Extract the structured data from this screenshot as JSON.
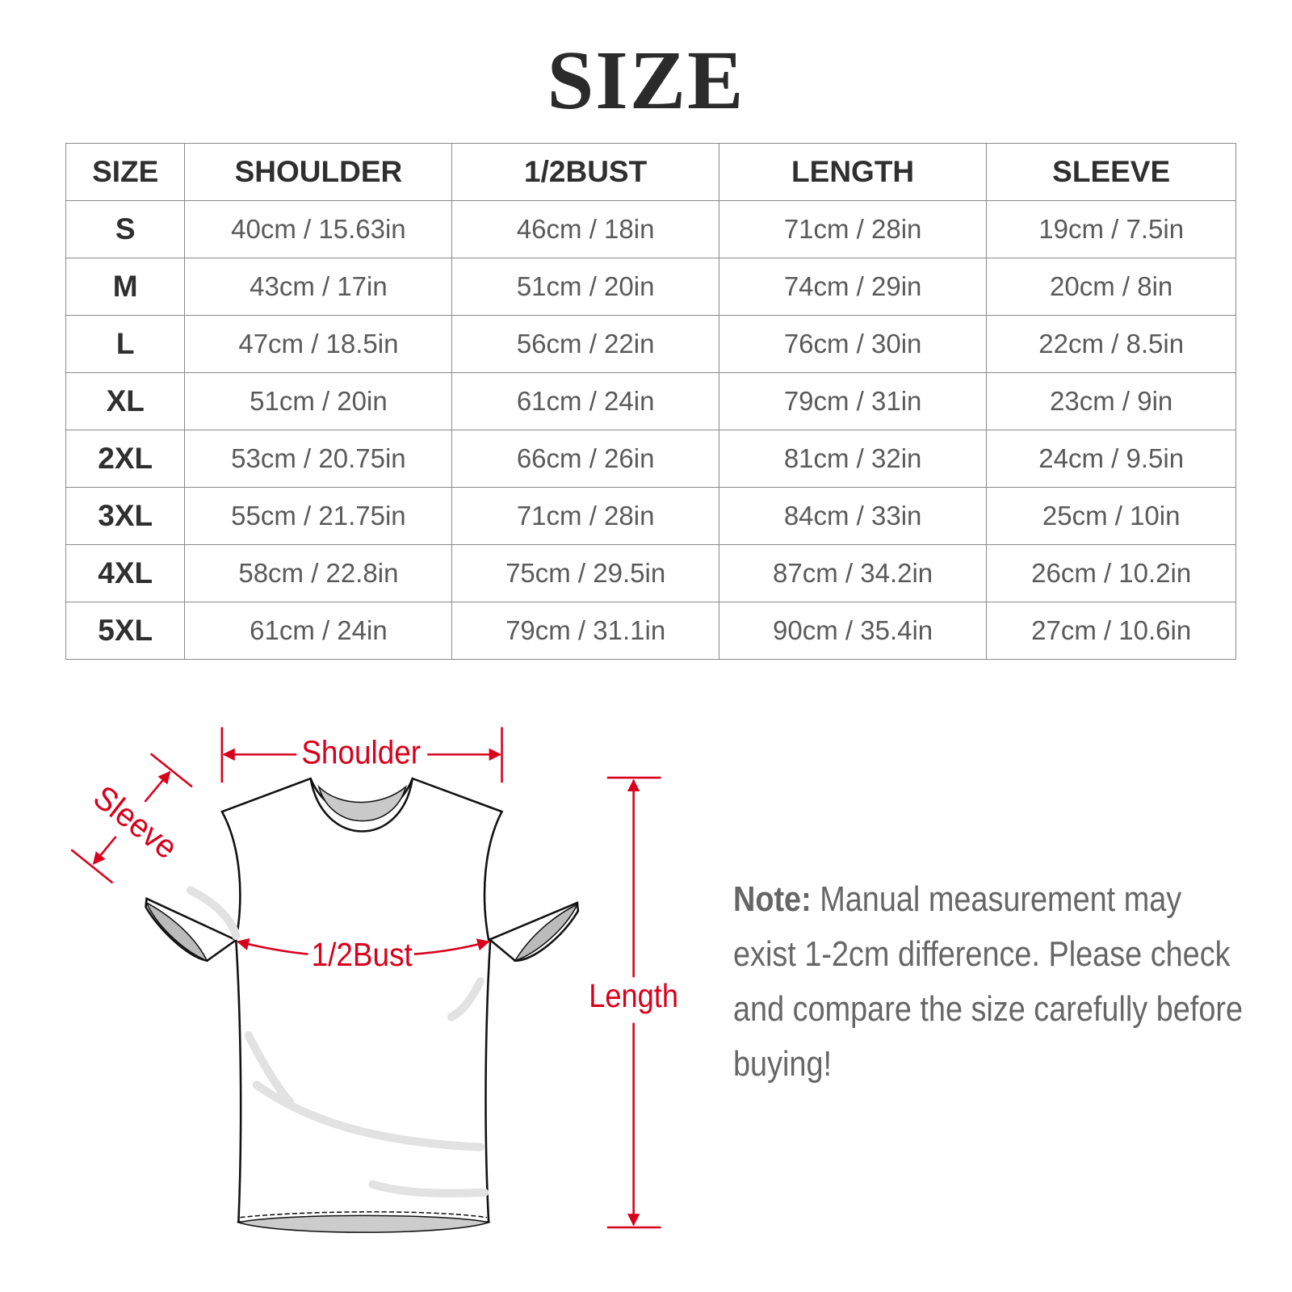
{
  "title": "SIZE",
  "table": {
    "headers": [
      "SIZE",
      "SHOULDER",
      "1/2BUST",
      "LENGTH",
      "SLEEVE"
    ],
    "rows": [
      [
        "S",
        "40cm / 15.63in",
        "46cm / 18in",
        "71cm / 28in",
        "19cm / 7.5in"
      ],
      [
        "M",
        "43cm / 17in",
        "51cm / 20in",
        "74cm / 29in",
        "20cm / 8in"
      ],
      [
        "L",
        "47cm / 18.5in",
        "56cm / 22in",
        "76cm / 30in",
        "22cm / 8.5in"
      ],
      [
        "XL",
        "51cm / 20in",
        "61cm / 24in",
        "79cm / 31in",
        "23cm / 9in"
      ],
      [
        "2XL",
        "53cm / 20.75in",
        "66cm / 26in",
        "81cm / 32in",
        "24cm / 9.5in"
      ],
      [
        "3XL",
        "55cm / 21.75in",
        "71cm / 28in",
        "84cm / 33in",
        "25cm / 10in"
      ],
      [
        "4XL",
        "58cm / 22.8in",
        "75cm / 29.5in",
        "87cm / 34.2in",
        "26cm / 10.2in"
      ],
      [
        "5XL",
        "61cm / 24in",
        "79cm / 31.1in",
        "90cm / 35.4in",
        "27cm / 10.6in"
      ]
    ]
  },
  "diagram": {
    "shoulder": "Shoulder",
    "sleeve": "Sleeve",
    "bust": "1/2Bust",
    "length": "Length",
    "accent_color": "#d9001b"
  },
  "note": {
    "label": "Note:",
    "text": " Manual measurement may exist 1-2cm difference. Please check and compare the size carefully before buying!"
  }
}
